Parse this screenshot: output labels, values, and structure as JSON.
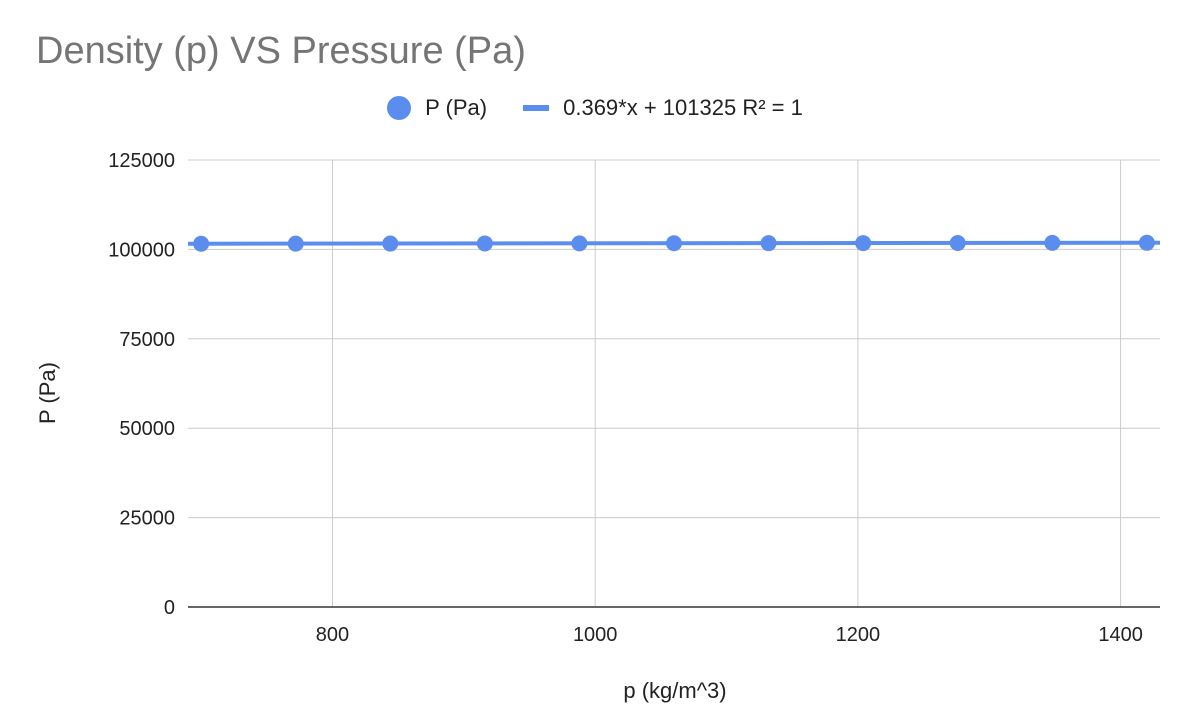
{
  "colors": {
    "series": "#5b8def",
    "grid": "#cccccc",
    "axis": "#333333",
    "title": "#757575"
  },
  "chart_data": {
    "type": "scatter",
    "title": "Density (p) VS Pressure (Pa)",
    "xlabel": "p (kg/m^3)",
    "ylabel": "P (Pa)",
    "xlim": [
      690,
      1430
    ],
    "ylim": [
      0,
      125000
    ],
    "x_ticks": [
      800,
      1000,
      1200,
      1400
    ],
    "y_ticks": [
      0,
      25000,
      50000,
      75000,
      100000,
      125000
    ],
    "grid": true,
    "legend_position": "top",
    "series": [
      {
        "name": "P (Pa)",
        "x": [
          700,
          772,
          844,
          916,
          988,
          1060,
          1132,
          1204,
          1276,
          1348,
          1420
        ],
        "y": [
          101583,
          101610,
          101636,
          101663,
          101690,
          101716,
          101743,
          101769,
          101796,
          101822,
          101849
        ]
      }
    ],
    "trendline": {
      "name": "0.369*x + 101325 R² = 1",
      "slope": 0.369,
      "intercept": 101325
    }
  }
}
